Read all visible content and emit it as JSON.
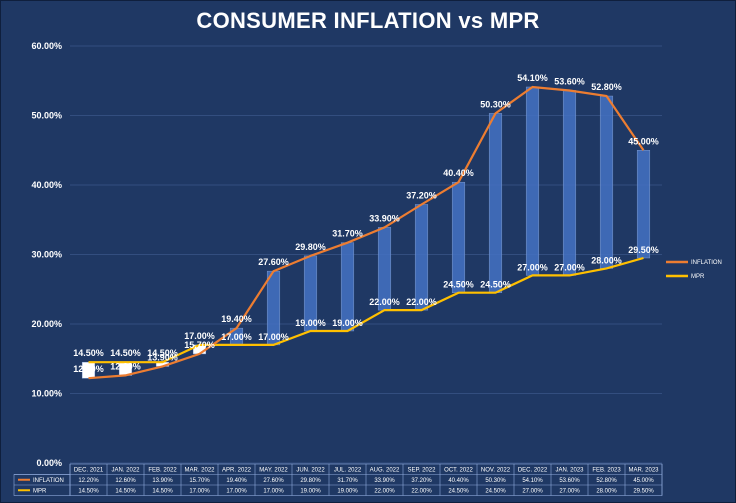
{
  "chart_data": {
    "type": "line",
    "title": "CONSUMER INFLATION vs MPR",
    "categories": [
      "DEC. 2021",
      "JAN. 2022",
      "FEB. 2022",
      "MAR. 2022",
      "APR. 2022",
      "MAY. 2022",
      "JUN. 2022",
      "JUL. 2022",
      "AUG. 2022",
      "SEP. 2022",
      "OCT. 2022",
      "NOV. 2022",
      "DEC. 2022",
      "JAN. 2023",
      "FEB. 2023",
      "MAR. 2023"
    ],
    "series": [
      {
        "name": "INFLATION",
        "values": [
          12.2,
          12.6,
          13.9,
          15.7,
          19.4,
          27.6,
          29.8,
          31.7,
          33.9,
          37.2,
          40.4,
          50.3,
          54.1,
          53.6,
          52.8,
          45.0
        ],
        "labels": [
          "12.20%",
          "12.60%",
          "13.90%",
          "15.70%",
          "19.40%",
          "27.60%",
          "29.80%",
          "31.70%",
          "33.90%",
          "37.20%",
          "40.40%",
          "50.30%",
          "54.10%",
          "53.60%",
          "52.80%",
          "45.00%"
        ],
        "color": "#ed7d31"
      },
      {
        "name": "MPR",
        "values": [
          14.5,
          14.5,
          14.5,
          17.0,
          17.0,
          17.0,
          19.0,
          19.0,
          22.0,
          22.0,
          24.5,
          24.5,
          27.0,
          27.0,
          28.0,
          29.5
        ],
        "labels": [
          "14.50%",
          "14.50%",
          "14.50%",
          "17.00%",
          "17.00%",
          "17.00%",
          "19.00%",
          "19.00%",
          "22.00%",
          "22.00%",
          "24.50%",
          "24.50%",
          "27.00%",
          "27.00%",
          "28.00%",
          "29.50%"
        ],
        "color": "#ffc000"
      }
    ],
    "ylim": [
      0,
      60
    ],
    "yticks": [
      "0.00%",
      "10.00%",
      "20.00%",
      "30.00%",
      "40.00%",
      "50.00%",
      "60.00%"
    ],
    "grid": true,
    "legend": "right",
    "bar_color": "#4472c4",
    "data_table": true
  }
}
